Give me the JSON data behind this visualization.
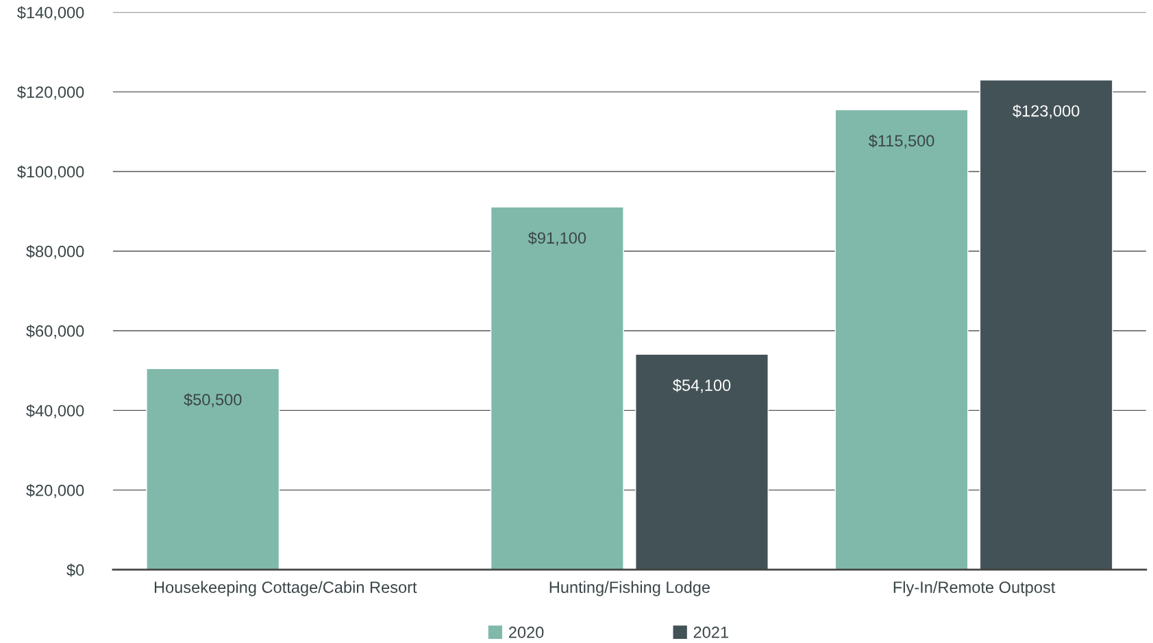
{
  "chart_data": {
    "type": "bar",
    "categories": [
      "Housekeeping Cottage/Cabin Resort",
      "Hunting/Fishing Lodge",
      "Fly-In/Remote Outpost"
    ],
    "series": [
      {
        "name": "2020",
        "color": "#80b9aa",
        "values": [
          50500,
          91100,
          115500
        ],
        "value_labels": [
          "$50,500",
          "$91,100",
          "$115,500"
        ]
      },
      {
        "name": "2021",
        "color": "#435256",
        "values": [
          null,
          54100,
          123000
        ],
        "value_labels": [
          null,
          "$54,100",
          "$123,000"
        ]
      }
    ],
    "ylim": [
      0,
      140000
    ],
    "yticks": [
      {
        "value": 0,
        "label": "$0"
      },
      {
        "value": 20000,
        "label": "$20,000"
      },
      {
        "value": 40000,
        "label": "$40,000"
      },
      {
        "value": 60000,
        "label": "$60,000"
      },
      {
        "value": 80000,
        "label": "$80,000"
      },
      {
        "value": 100000,
        "label": "$100,000"
      },
      {
        "value": 120000,
        "label": "$120,000"
      },
      {
        "value": 140000,
        "label": "$140,000"
      }
    ],
    "grid": "y",
    "legend": "bottom"
  }
}
